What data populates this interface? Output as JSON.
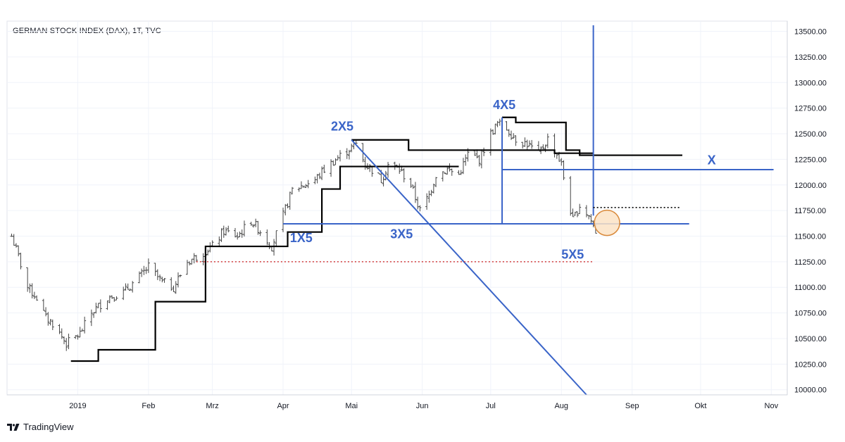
{
  "chart_data": {
    "type": "ohlc",
    "title": "GERMAN STOCK INDEX (DAX), 1T, TVC",
    "y_axis": {
      "position": "right",
      "range": [
        9950,
        13600
      ],
      "ticks": [
        "10000.00",
        "10250.00",
        "10500.00",
        "10750.00",
        "11000.00",
        "11250.00",
        "11500.00",
        "11750.00",
        "12000.00",
        "12250.00",
        "12500.00",
        "12750.00",
        "13000.00",
        "13250.00",
        "13500.00"
      ]
    },
    "x_axis": {
      "range": [
        "2018-12-01",
        "2019-11-08"
      ],
      "ticks": [
        {
          "date": "2019-01-01",
          "label": "2019"
        },
        {
          "date": "2019-02-01",
          "label": "Feb"
        },
        {
          "date": "2019-03-01",
          "label": "Mrz"
        },
        {
          "date": "2019-04-01",
          "label": "Apr"
        },
        {
          "date": "2019-05-01",
          "label": "Mai"
        },
        {
          "date": "2019-06-01",
          "label": "Jun"
        },
        {
          "date": "2019-07-01",
          "label": "Jul"
        },
        {
          "date": "2019-08-01",
          "label": "Aug"
        },
        {
          "date": "2019-09-01",
          "label": "Sep"
        },
        {
          "date": "2019-10-01",
          "label": "Okt"
        },
        {
          "date": "2019-11-01",
          "label": "Nov"
        }
      ]
    },
    "price_path": [
      [
        "2018-12-01",
        11350
      ],
      [
        "2018-12-03",
        11500
      ],
      [
        "2018-12-06",
        11300
      ],
      [
        "2018-12-10",
        11000
      ],
      [
        "2018-12-14",
        10900
      ],
      [
        "2018-12-18",
        10700
      ],
      [
        "2018-12-21",
        10650
      ],
      [
        "2018-12-27",
        10450
      ],
      [
        "2019-01-02",
        10550
      ],
      [
        "2019-01-07",
        10750
      ],
      [
        "2019-01-14",
        10900
      ],
      [
        "2019-01-21",
        10950
      ],
      [
        "2019-01-28",
        11100
      ],
      [
        "2019-02-01",
        11200
      ],
      [
        "2019-02-07",
        11050
      ],
      [
        "2019-02-12",
        11000
      ],
      [
        "2019-02-18",
        11250
      ],
      [
        "2019-02-22",
        11300
      ],
      [
        "2019-03-01",
        11400
      ],
      [
        "2019-03-06",
        11550
      ],
      [
        "2019-03-12",
        11500
      ],
      [
        "2019-03-18",
        11650
      ],
      [
        "2019-03-22",
        11550
      ],
      [
        "2019-03-27",
        11400
      ],
      [
        "2019-04-01",
        11700
      ],
      [
        "2019-04-05",
        11950
      ],
      [
        "2019-04-10",
        12000
      ],
      [
        "2019-04-15",
        12050
      ],
      [
        "2019-04-19",
        12150
      ],
      [
        "2019-04-24",
        12250
      ],
      [
        "2019-04-30",
        12350
      ],
      [
        "2019-05-03",
        12400
      ],
      [
        "2019-05-07",
        12200
      ],
      [
        "2019-05-10",
        12150
      ],
      [
        "2019-05-14",
        12050
      ],
      [
        "2019-05-17",
        12200
      ],
      [
        "2019-05-22",
        12150
      ],
      [
        "2019-05-27",
        12000
      ],
      [
        "2019-05-31",
        11750
      ],
      [
        "2019-06-04",
        11900
      ],
      [
        "2019-06-07",
        12100
      ],
      [
        "2019-06-12",
        12150
      ],
      [
        "2019-06-17",
        12100
      ],
      [
        "2019-06-21",
        12300
      ],
      [
        "2019-06-26",
        12250
      ],
      [
        "2019-07-01",
        12500
      ],
      [
        "2019-07-04",
        12600
      ],
      [
        "2019-07-08",
        12550
      ],
      [
        "2019-07-12",
        12450
      ],
      [
        "2019-07-17",
        12400
      ],
      [
        "2019-07-22",
        12300
      ],
      [
        "2019-07-26",
        12450
      ],
      [
        "2019-07-30",
        12300
      ],
      [
        "2019-08-01",
        12200
      ],
      [
        "2019-08-03",
        11950
      ],
      [
        "2019-08-06",
        11650
      ],
      [
        "2019-08-09",
        11800
      ],
      [
        "2019-08-13",
        11700
      ],
      [
        "2019-08-16",
        11550
      ]
    ],
    "step_levels": [
      {
        "points": [
          [
            "2018-12-29",
            10280
          ],
          [
            "2019-01-10",
            10280
          ],
          [
            "2019-01-10",
            10390
          ],
          [
            "2019-02-04",
            10390
          ],
          [
            "2019-02-04",
            10860
          ],
          [
            "2019-02-26",
            10860
          ],
          [
            "2019-02-26",
            11400
          ],
          [
            "2019-04-03",
            11400
          ],
          [
            "2019-04-03",
            11540
          ],
          [
            "2019-04-18",
            11540
          ],
          [
            "2019-04-18",
            11960
          ],
          [
            "2019-04-26",
            11960
          ],
          [
            "2019-04-26",
            12180
          ],
          [
            "2019-06-17",
            12180
          ]
        ]
      },
      {
        "points": [
          [
            "2019-05-01",
            12440
          ],
          [
            "2019-05-26",
            12440
          ],
          [
            "2019-05-26",
            12340
          ],
          [
            "2019-07-29",
            12340
          ],
          [
            "2019-07-29",
            12310
          ],
          [
            "2019-08-15",
            12310
          ]
        ]
      },
      {
        "points": [
          [
            "2019-07-06",
            12660
          ],
          [
            "2019-07-12",
            12660
          ],
          [
            "2019-07-12",
            12610
          ],
          [
            "2019-08-03",
            12610
          ],
          [
            "2019-08-03",
            12340
          ],
          [
            "2019-08-09",
            12340
          ],
          [
            "2019-08-09",
            12290
          ],
          [
            "2019-09-23",
            12290
          ]
        ]
      }
    ],
    "lines": [
      {
        "name": "blue-horizontal-3x5",
        "color": "#3a64c8",
        "from": [
          "2019-04-01",
          11620
        ],
        "to": [
          "2019-09-26",
          11620
        ]
      },
      {
        "name": "blue-horizontal-x",
        "color": "#3a64c8",
        "from": [
          "2019-07-06",
          12150
        ],
        "to": [
          "2019-11-02",
          12150
        ]
      },
      {
        "name": "blue-diagonal",
        "color": "#3a64c8",
        "from": [
          "2019-05-01",
          12440
        ],
        "to": [
          "2019-08-12",
          9950
        ]
      },
      {
        "name": "blue-vertical-right",
        "color": "#3a64c8",
        "from": [
          "2019-08-15",
          13560
        ],
        "to": [
          "2019-08-15",
          11700
        ]
      },
      {
        "name": "blue-vertical-left",
        "color": "#3a64c8",
        "from": [
          "2019-07-06",
          12660
        ],
        "to": [
          "2019-07-06",
          11620
        ]
      },
      {
        "name": "red-dotted-support",
        "color": "#d23c3c",
        "dash": true,
        "from": [
          "2019-02-22",
          11250
        ],
        "to": [
          "2019-08-15",
          11250
        ]
      },
      {
        "name": "black-dotted-resistance",
        "color": "#000000",
        "dash": true,
        "from": [
          "2019-08-15",
          11780
        ],
        "to": [
          "2019-09-22",
          11780
        ]
      }
    ],
    "annotations": [
      {
        "text": "1X5",
        "at": [
          "2019-04-04",
          11440
        ]
      },
      {
        "text": "2X5",
        "at": [
          "2019-04-22",
          12530
        ]
      },
      {
        "text": "3X5",
        "at": [
          "2019-05-18",
          11480
        ]
      },
      {
        "text": "4X5",
        "at": [
          "2019-07-02",
          12740
        ]
      },
      {
        "text": "5X5",
        "at": [
          "2019-08-01",
          11280
        ]
      },
      {
        "text": "X",
        "at": [
          "2019-10-04",
          12200
        ]
      }
    ],
    "highlight_circle": {
      "center": [
        "2019-08-21",
        11630
      ],
      "color": "#fce3c6",
      "stroke": "#d9893a"
    }
  },
  "brand": {
    "logo_icon": "tradingview-logo-icon",
    "name": "TradingView"
  }
}
